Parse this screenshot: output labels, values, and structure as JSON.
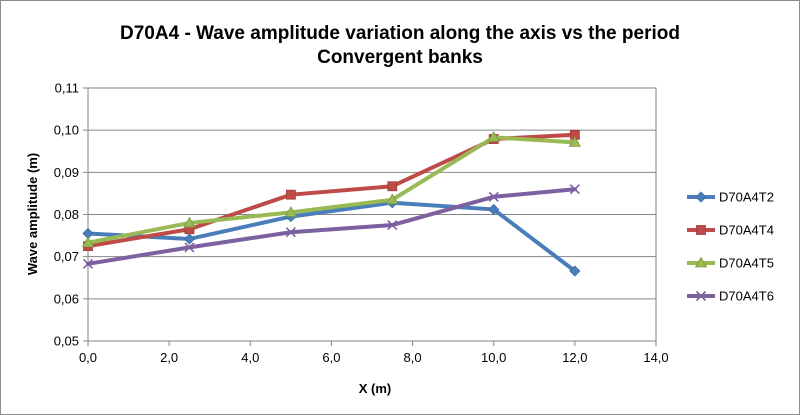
{
  "chart_data": {
    "type": "line",
    "title": "D70A4 - Wave amplitude variation along the axis vs the period",
    "subtitle": "Convergent banks",
    "xlabel": "X (m)",
    "ylabel": "Wave amplitude (m)",
    "xlim": [
      0,
      14
    ],
    "ylim": [
      0.05,
      0.11
    ],
    "x_ticks": [
      "0,0",
      "2,0",
      "4,0",
      "6,0",
      "8,0",
      "10,0",
      "12,0",
      "14,0"
    ],
    "y_ticks": [
      "0,05",
      "0,06",
      "0,07",
      "0,08",
      "0,09",
      "0,10",
      "0,11"
    ],
    "grid": "horizontal",
    "legend_position": "right",
    "series": [
      {
        "name": "D70A4T2",
        "color": "#4a7ebb",
        "marker": "diamond",
        "x": [
          0,
          2.5,
          5,
          7.5,
          10,
          12
        ],
        "y": [
          0.0755,
          0.0742,
          0.0795,
          0.0828,
          0.0812,
          0.0666
        ]
      },
      {
        "name": "D70A4T4",
        "color": "#be4b48",
        "marker": "square",
        "x": [
          0,
          2.5,
          5,
          7.5,
          10,
          12
        ],
        "y": [
          0.0725,
          0.0765,
          0.0847,
          0.0867,
          0.0979,
          0.0989
        ]
      },
      {
        "name": "D70A4T5",
        "color": "#98b954",
        "marker": "triangle",
        "x": [
          0,
          2.5,
          5,
          7.5,
          10,
          12
        ],
        "y": [
          0.0733,
          0.078,
          0.0805,
          0.0835,
          0.0983,
          0.0971
        ]
      },
      {
        "name": "D70A4T6",
        "color": "#7d60a0",
        "marker": "x",
        "x": [
          0,
          2.5,
          5,
          7.5,
          10,
          12
        ],
        "y": [
          0.0683,
          0.0722,
          0.0758,
          0.0775,
          0.0842,
          0.086
        ]
      }
    ]
  }
}
